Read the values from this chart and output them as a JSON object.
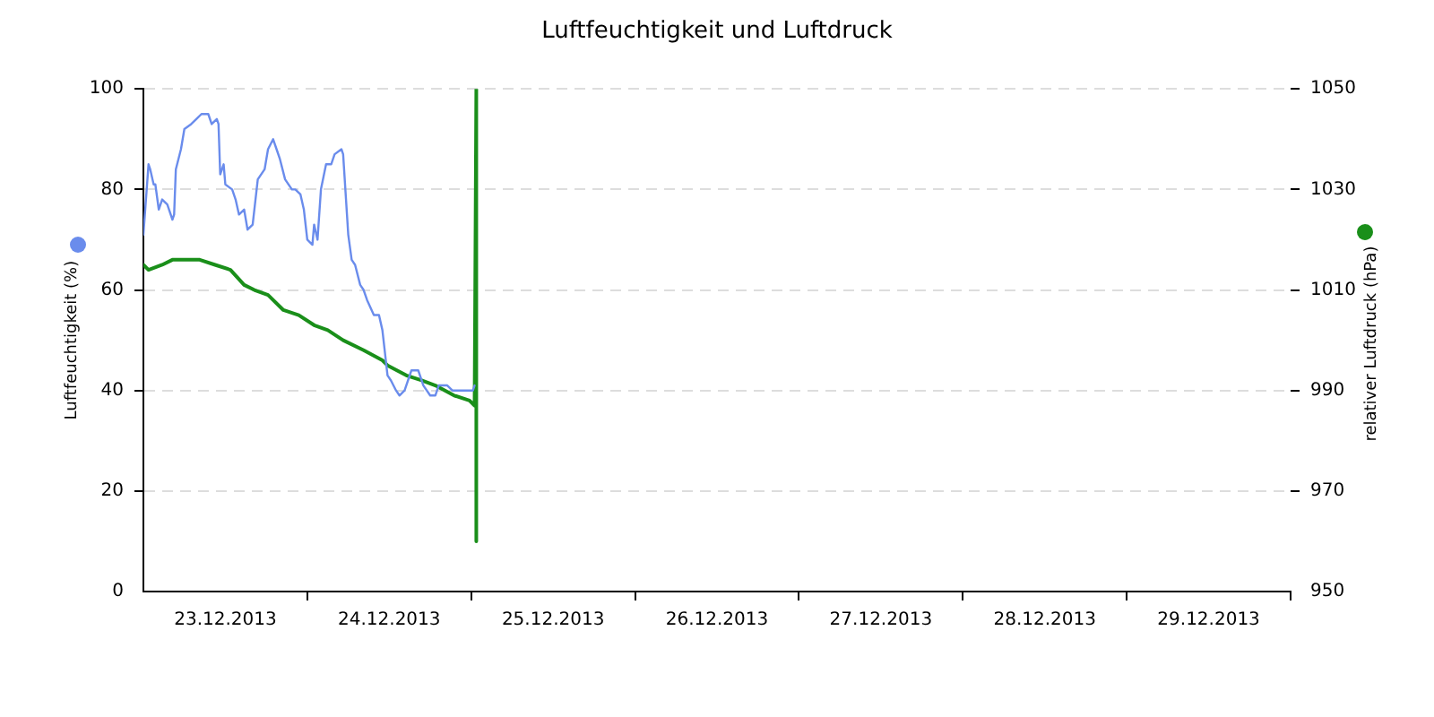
{
  "chart_data": {
    "type": "line",
    "title": "Luftfeuchtigkeit und Luftdruck",
    "ylabel": "Luftfeuchtigkeit (%)",
    "y2label": "relativer Luftdruck (hPa)",
    "xlim": [
      "2013-12-23T00:00",
      "2013-12-30T00:00"
    ],
    "xticks": [
      {
        "value": "2013-12-23T12:00",
        "label": "23.12.2013"
      },
      {
        "value": "2013-12-24T00:00",
        "label": null
      },
      {
        "value": "2013-12-24T12:00",
        "label": "24.12.2013"
      },
      {
        "value": "2013-12-25T00:00",
        "label": null
      },
      {
        "value": "2013-12-25T12:00",
        "label": "25.12.2013"
      },
      {
        "value": "2013-12-26T00:00",
        "label": null
      },
      {
        "value": "2013-12-26T12:00",
        "label": "26.12.2013"
      },
      {
        "value": "2013-12-27T00:00",
        "label": null
      },
      {
        "value": "2013-12-27T12:00",
        "label": "27.12.2013"
      },
      {
        "value": "2013-12-28T00:00",
        "label": null
      },
      {
        "value": "2013-12-28T12:00",
        "label": "28.12.2013"
      },
      {
        "value": "2013-12-29T00:00",
        "label": null
      },
      {
        "value": "2013-12-29T12:00",
        "label": "29.12.2013"
      },
      {
        "value": "2013-12-30T00:00",
        "label": null
      }
    ],
    "ylim": [
      0,
      100
    ],
    "yticks": [
      0,
      20,
      40,
      60,
      80,
      100
    ],
    "y2lim": [
      950,
      1050
    ],
    "y2ticks": [
      950,
      970,
      990,
      1010,
      1030,
      1050
    ],
    "grid": "y",
    "marker": "none",
    "series": [
      {
        "color": "#6a8cec",
        "x": [
          "2013-12-23T00:00",
          "2013-12-23T00:45",
          "2013-12-23T01:00",
          "2013-12-23T01:30",
          "2013-12-23T01:45",
          "2013-12-23T02:15",
          "2013-12-23T02:45",
          "2013-12-23T03:30",
          "2013-12-23T04:15",
          "2013-12-23T04:30",
          "2013-12-23T04:45",
          "2013-12-23T05:30",
          "2013-12-23T06:00",
          "2013-12-23T07:00",
          "2013-12-23T07:45",
          "2013-12-23T08:30",
          "2013-12-23T09:30",
          "2013-12-23T10:00",
          "2013-12-23T10:45",
          "2013-12-23T11:00",
          "2013-12-23T11:15",
          "2013-12-23T11:45",
          "2013-12-23T12:00",
          "2013-12-23T13:00",
          "2013-12-23T13:30",
          "2013-12-23T14:00",
          "2013-12-23T14:45",
          "2013-12-23T15:15",
          "2013-12-23T16:00",
          "2013-12-23T16:45",
          "2013-12-23T17:45",
          "2013-12-23T18:15",
          "2013-12-23T19:00",
          "2013-12-23T19:30",
          "2013-12-23T20:00",
          "2013-12-23T20:45",
          "2013-12-23T21:45",
          "2013-12-23T22:15",
          "2013-12-23T23:00",
          "2013-12-23T23:30",
          "2013-12-24T00:00",
          "2013-12-24T00:45",
          "2013-12-24T01:00",
          "2013-12-24T01:30",
          "2013-12-24T02:00",
          "2013-12-24T02:45",
          "2013-12-24T03:30",
          "2013-12-24T04:00",
          "2013-12-24T05:00",
          "2013-12-24T05:15",
          "2013-12-24T06:00",
          "2013-12-24T06:30",
          "2013-12-24T07:00",
          "2013-12-24T07:45",
          "2013-12-24T08:15",
          "2013-12-24T08:45",
          "2013-12-24T09:45",
          "2013-12-24T10:30",
          "2013-12-24T11:00",
          "2013-12-24T11:45",
          "2013-12-24T12:15",
          "2013-12-24T13:00",
          "2013-12-24T13:30",
          "2013-12-24T14:15",
          "2013-12-24T15:15",
          "2013-12-24T16:15",
          "2013-12-24T17:00",
          "2013-12-24T18:00",
          "2013-12-24T18:45",
          "2013-12-24T19:15",
          "2013-12-24T20:30",
          "2013-12-24T21:15",
          "2013-12-24T23:45",
          "2013-12-25T00:15",
          "2013-12-25T00:30"
        ],
        "values": [
          71,
          85,
          84,
          81,
          81,
          76,
          78,
          77,
          74,
          75,
          84,
          88,
          92,
          93,
          94,
          95,
          95,
          93,
          94,
          93,
          83,
          85,
          81,
          80,
          78,
          75,
          76,
          72,
          73,
          82,
          84,
          88,
          90,
          88,
          86,
          82,
          80,
          80,
          79,
          76,
          70,
          69,
          73,
          70,
          80,
          85,
          85,
          87,
          88,
          87,
          71,
          66,
          65,
          61,
          60,
          58,
          55,
          55,
          52,
          43,
          42,
          40,
          39,
          40,
          44,
          44,
          41,
          39,
          39,
          41,
          41,
          40,
          40,
          40,
          41
        ]
      },
      {
        "color": "#1a8f1a",
        "axis": "y2",
        "x": [
          "2013-12-23T00:00",
          "2013-12-23T00:45",
          "2013-12-23T02:45",
          "2013-12-23T04:15",
          "2013-12-23T07:00",
          "2013-12-23T08:15",
          "2013-12-23T10:30",
          "2013-12-23T12:45",
          "2013-12-23T14:45",
          "2013-12-23T16:15",
          "2013-12-23T18:15",
          "2013-12-23T20:30",
          "2013-12-23T22:45",
          "2013-12-24T01:00",
          "2013-12-24T03:00",
          "2013-12-24T05:15",
          "2013-12-24T08:15",
          "2013-12-24T11:00",
          "2013-12-24T11:45",
          "2013-12-24T14:30",
          "2013-12-24T16:45",
          "2013-12-24T18:45",
          "2013-12-24T21:30",
          "2013-12-24T23:45",
          "2013-12-25T00:30",
          "2013-12-25T00:45",
          "2013-12-25T00:45",
          "2013-12-25T00:45"
        ],
        "values": [
          1015,
          1014,
          1015,
          1016,
          1016,
          1016,
          1015,
          1014,
          1011,
          1010,
          1009,
          1006,
          1005,
          1003,
          1002,
          1000,
          998,
          996,
          995,
          993,
          992,
          991,
          989,
          988,
          987,
          1050,
          960,
          995
        ]
      }
    ]
  }
}
